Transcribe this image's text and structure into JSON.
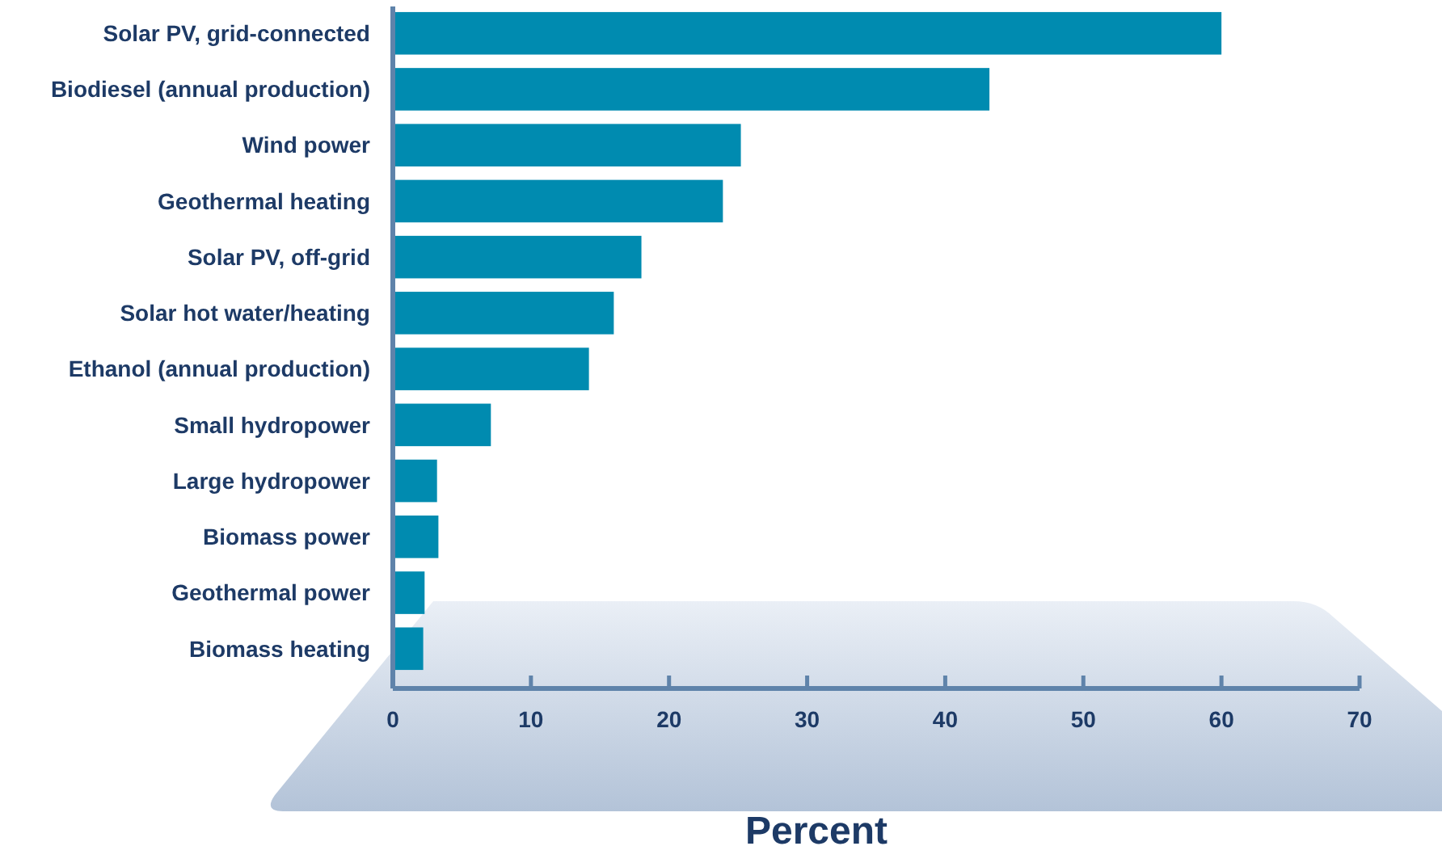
{
  "chart_data": {
    "type": "bar",
    "orientation": "horizontal",
    "xlabel": "Percent",
    "categories": [
      "Solar PV, grid-connected",
      "Biodiesel (annual production)",
      "Wind power",
      "Geothermal heating",
      "Solar PV, off-grid",
      "Solar hot water/heating",
      "Ethanol (annual production)",
      "Small hydropower",
      "Large hydropower",
      "Biomass power",
      "Geothermal power",
      "Biomass heating"
    ],
    "values": [
      60,
      43.2,
      25.2,
      23.9,
      18,
      16,
      14.2,
      7.1,
      3.2,
      3.3,
      2.3,
      2.2
    ],
    "color": "#008bb0",
    "xlim": [
      0,
      70
    ],
    "xticks": [
      0,
      10,
      20,
      30,
      40,
      50,
      60,
      70
    ],
    "grid": false
  }
}
